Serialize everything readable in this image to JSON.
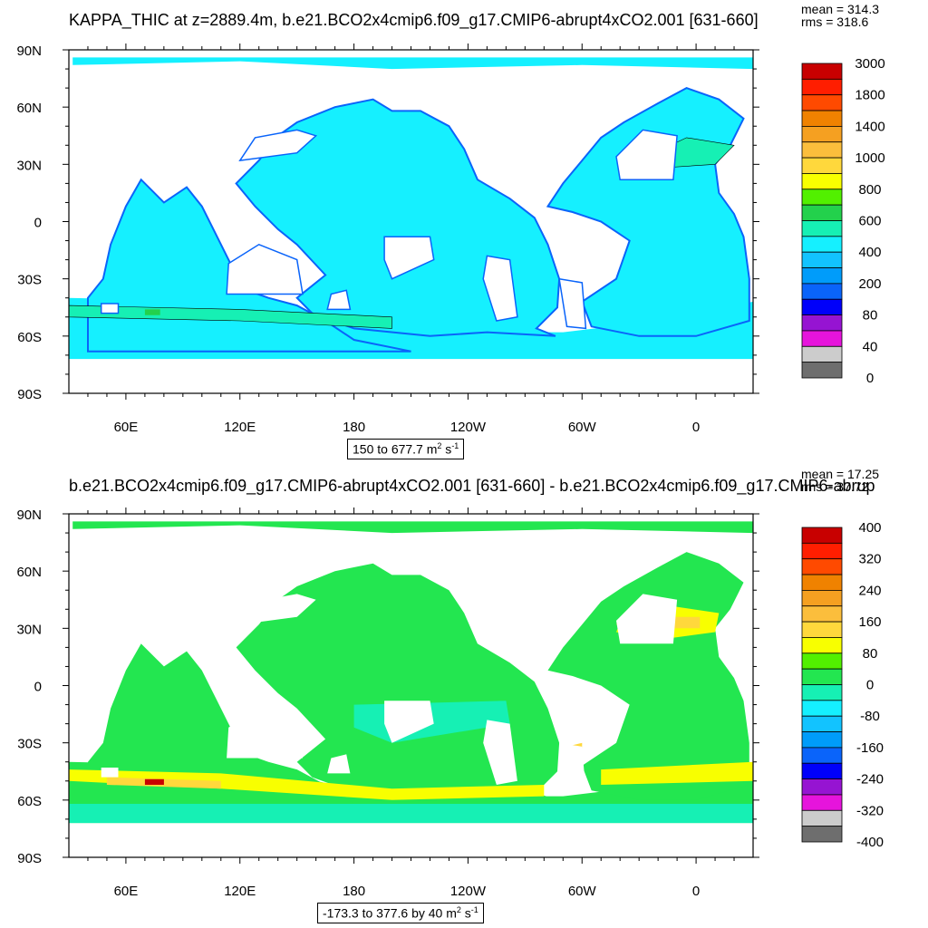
{
  "panels": [
    {
      "title": "KAPPA_THIC at z=2889.4m, b.e21.BCO2x4cmip6.f09_g17.CMIP6-abrupt4xCO2.001 [631-660]",
      "stats_mean": "mean = 314.3",
      "stats_rms": "rms = 318.6",
      "range_text": "150 to 677.7 m",
      "units_m_exp": "2",
      "units_s": " s",
      "units_s_exp": "-1",
      "colorbar": {
        "labels": [
          "3000",
          "1800",
          "1400",
          "1000",
          "800",
          "600",
          "400",
          "200",
          "80",
          "40",
          "0"
        ],
        "colors": [
          "#c80000",
          "#ff1e00",
          "#ff4a00",
          "#f08200",
          "#f5a021",
          "#fbbe3c",
          "#ffd83c",
          "#f8ff00",
          "#52f000",
          "#23d14c",
          "#16f0b4",
          "#15f0ff",
          "#12c3ff",
          "#009cfa",
          "#0a64fa",
          "#0000fa",
          "#9614d2",
          "#e614dc",
          "#cccccc",
          "#6e6e6e"
        ]
      },
      "chart_data": {
        "type": "heatmap",
        "title": "KAPPA_THIC at z=2889.4m, b.e21.BCO2x4cmip6.f09_g17.CMIP6-abrupt4xCO2.001 [631-660]",
        "x_ticks": [
          "60E",
          "120E",
          "180",
          "120W",
          "60W",
          "0"
        ],
        "y_ticks": [
          "90N",
          "60N",
          "30N",
          "0",
          "30S",
          "60S",
          "90S"
        ],
        "xlim": [
          30,
          390
        ],
        "ylim": [
          -90,
          90
        ],
        "value_range": [
          150,
          677.7
        ],
        "mean": 314.3,
        "rms": 318.6,
        "levels": [
          0,
          40,
          80,
          200,
          400,
          600,
          800,
          1000,
          1400,
          1800,
          3000
        ]
      }
    },
    {
      "title": "b.e21.BCO2x4cmip6.f09_g17.CMIP6-abrupt4xCO2.001 [631-660] - b.e21.BCO2x4cmip6.f09_g17.CMIP6-abrup",
      "stats_mean": "mean = 17.25",
      "stats_rms": "rms = 37.72",
      "range_text": "-173.3 to 377.6 by 40 m",
      "units_m_exp": "2",
      "units_s": " s",
      "units_s_exp": "-1",
      "colorbar": {
        "labels": [
          "400",
          "320",
          "240",
          "160",
          "80",
          "0",
          "-80",
          "-160",
          "-240",
          "-320",
          "-400"
        ],
        "colors": [
          "#c80000",
          "#ff1e00",
          "#ff4a00",
          "#f08200",
          "#f5a021",
          "#fbbe3c",
          "#ffd83c",
          "#f8ff00",
          "#52f000",
          "#23e650",
          "#16f0b4",
          "#15f0ff",
          "#12c3ff",
          "#009cfa",
          "#0a64fa",
          "#0000fa",
          "#9614d2",
          "#e614dc",
          "#cccccc",
          "#6e6e6e"
        ]
      },
      "chart_data": {
        "type": "heatmap",
        "title": "b.e21.BCO2x4cmip6.f09_g17.CMIP6-abrupt4xCO2.001 [631-660] - b.e21.BCO2x4cmip6.f09_g17.CMIP6-abrup",
        "x_ticks": [
          "60E",
          "120E",
          "180",
          "120W",
          "60W",
          "0"
        ],
        "y_ticks": [
          "90N",
          "60N",
          "30N",
          "0",
          "30S",
          "60S",
          "90S"
        ],
        "xlim": [
          30,
          390
        ],
        "ylim": [
          -90,
          90
        ],
        "value_range": [
          -173.3,
          377.6
        ],
        "contour_interval": 40,
        "mean": 17.25,
        "rms": 37.72,
        "levels": [
          -400,
          -320,
          -240,
          -160,
          -80,
          0,
          80,
          160,
          240,
          320,
          400
        ]
      }
    }
  ]
}
